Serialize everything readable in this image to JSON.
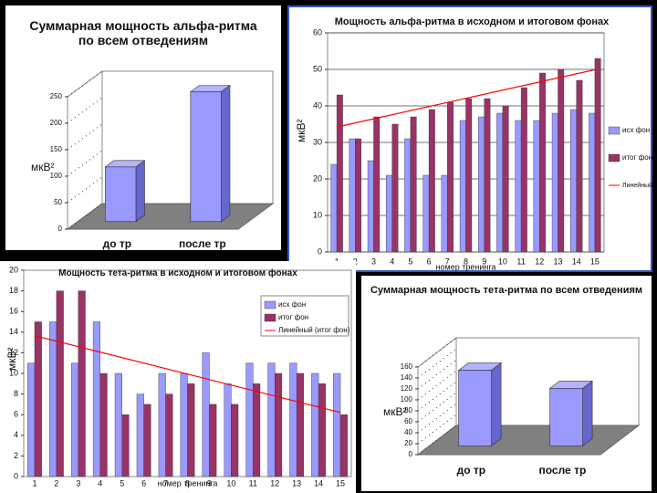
{
  "chart_data": [
    {
      "type": "bar3d",
      "title": "Суммарная мощность альфа-ритма по всем отведениям",
      "y_label": "мкВ²",
      "categories": [
        "до тр",
        "после тр"
      ],
      "values": [
        103,
        245
      ],
      "color": "#9999ff",
      "ylim": [
        0,
        250
      ],
      "yticks": [
        0,
        50,
        100,
        150,
        200,
        250
      ]
    },
    {
      "type": "bar",
      "title": "Мощность альфа-ритма в исходном и итоговом фонах",
      "x_label": "номер тренинга",
      "y_label": "мкВ²",
      "categories": [
        "1",
        "2",
        "3",
        "4",
        "5",
        "6",
        "7",
        "8",
        "9",
        "10",
        "11",
        "12",
        "13",
        "14",
        "15"
      ],
      "series": [
        {
          "name": "исх фон",
          "color": "#9999ff",
          "values": [
            24,
            31,
            25,
            21,
            31,
            21,
            21,
            36,
            37,
            38,
            36,
            36,
            38,
            39,
            38
          ]
        },
        {
          "name": "итог фон",
          "color": "#993366",
          "values": [
            43,
            31,
            37,
            35,
            37,
            39,
            41,
            42,
            42,
            40,
            45,
            49,
            50,
            47,
            53
          ]
        }
      ],
      "trend": {
        "name": "Линейный (итог фон)",
        "series": 1,
        "color": "#ff0000"
      },
      "ylim": [
        0,
        60
      ],
      "yticks": [
        0,
        10,
        20,
        30,
        40,
        50,
        60
      ],
      "grid": true
    },
    {
      "type": "bar",
      "title": "Мощность тета-ритма в исходном и итоговом фонах",
      "x_label": "номер тренинга",
      "y_label": "мкВ²",
      "categories": [
        "1",
        "2",
        "3",
        "4",
        "5",
        "6",
        "7",
        "8",
        "9",
        "10",
        "11",
        "12",
        "13",
        "14",
        "15"
      ],
      "series": [
        {
          "name": "исх фон",
          "color": "#9999ff",
          "values": [
            11,
            15,
            11,
            15,
            10,
            8,
            10,
            10,
            12,
            9,
            11,
            11,
            11,
            10,
            10
          ]
        },
        {
          "name": "итог фон",
          "color": "#993366",
          "values": [
            15,
            18,
            18,
            10,
            6,
            7,
            8,
            9,
            7,
            7,
            9,
            10,
            10,
            9,
            6
          ]
        }
      ],
      "trend": {
        "name": "Линейный (итог фон)",
        "series": 1,
        "color": "#ff0000"
      },
      "ylim": [
        0,
        20
      ],
      "yticks": [
        0,
        2,
        4,
        6,
        8,
        10,
        12,
        14,
        16,
        18,
        20
      ],
      "grid": false
    },
    {
      "type": "bar3d",
      "title": "Суммарная мощность тета-ритма по всем отведениям",
      "y_label": "мкВ²",
      "categories": [
        "до тр",
        "после тр"
      ],
      "values": [
        138,
        105
      ],
      "color": "#9999ff",
      "ylim": [
        0,
        160
      ],
      "yticks": [
        0,
        20,
        40,
        60,
        80,
        100,
        120,
        140,
        160
      ]
    }
  ]
}
